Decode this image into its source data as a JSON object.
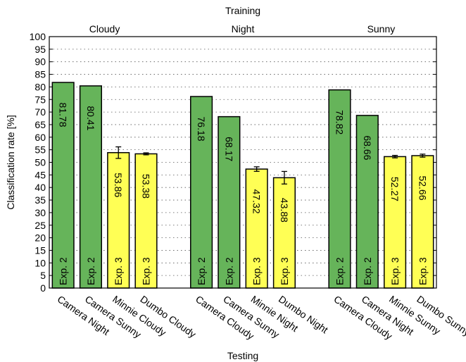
{
  "chart_data": {
    "type": "bar",
    "title": "Training",
    "xlabel": "Testing",
    "ylabel": "Classification rate [%]",
    "ylim": [
      0,
      100
    ],
    "yticks": [
      0,
      5,
      10,
      15,
      20,
      25,
      30,
      35,
      40,
      45,
      50,
      55,
      60,
      65,
      70,
      75,
      80,
      85,
      90,
      95,
      100
    ],
    "grid": true,
    "colors": {
      "exp2": "#66b45a",
      "exp3": "#ffff55"
    },
    "groups": [
      {
        "name": "Cloudy",
        "bars": [
          {
            "category": "Camera Night",
            "value": 81.78,
            "label": "81.78",
            "tag": "Exp. 2",
            "error": null
          },
          {
            "category": "Camera Sunny",
            "value": 80.41,
            "label": "80.41",
            "tag": "Exp. 2",
            "error": null
          },
          {
            "category": "Minnie Cloudy",
            "value": 53.86,
            "label": "53.86",
            "tag": "Exp. 3",
            "error": 2.3
          },
          {
            "category": "Dumbo Cloudy",
            "value": 53.38,
            "label": "53.38",
            "tag": "Exp. 3",
            "error": 0.4
          }
        ]
      },
      {
        "name": "Night",
        "bars": [
          {
            "category": "Camera Cloudy",
            "value": 76.18,
            "label": "76.18",
            "tag": "Exp. 2",
            "error": null
          },
          {
            "category": "Camera Sunny",
            "value": 68.17,
            "label": "68.17",
            "tag": "Exp. 2",
            "error": null
          },
          {
            "category": "Minnie Night",
            "value": 47.32,
            "label": "47.32",
            "tag": "Exp. 3",
            "error": 0.9
          },
          {
            "category": "Dumbo Night",
            "value": 43.88,
            "label": "43.88",
            "tag": "Exp. 3",
            "error": 2.5
          }
        ]
      },
      {
        "name": "Sunny",
        "bars": [
          {
            "category": "Camera Cloudy",
            "value": 78.82,
            "label": "78.82",
            "tag": "Exp. 2",
            "error": null
          },
          {
            "category": "Camera Night",
            "value": 68.66,
            "label": "68.66",
            "tag": "Exp. 2",
            "error": null
          },
          {
            "category": "Minnie Sunny",
            "value": 52.27,
            "label": "52.27",
            "tag": "Exp. 3",
            "error": 0.5
          },
          {
            "category": "Dumbo Sunny",
            "value": 52.66,
            "label": "52.66",
            "tag": "Exp. 3",
            "error": 0.6
          }
        ]
      }
    ]
  }
}
